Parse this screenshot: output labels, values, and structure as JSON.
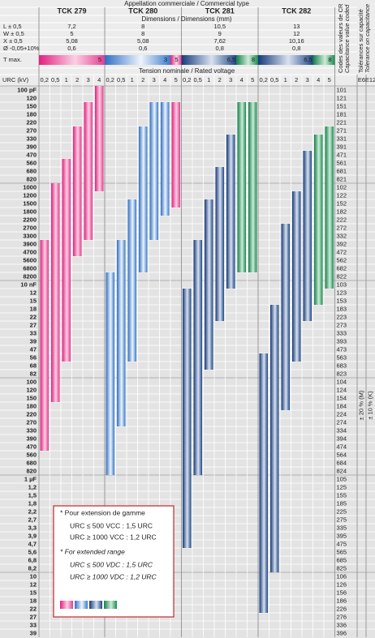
{
  "header": {
    "type_title": "Appellation commerciale / Commercial type",
    "dim_title": "Dimensions / Dimensions (mm)",
    "dim_labels": [
      "L ± 0,5",
      "W ± 0,5",
      "X ± 0,5",
      "Ø -0,05+10%"
    ],
    "tmax_label": "T max.",
    "voltage_title": "Tension nominale / Rated voltage",
    "urc_label": "URC (kV)",
    "code_title": [
      "Codes des valeurs de CR",
      "Capacitance value coded"
    ],
    "tol_title": [
      "Tolérances sur capacité",
      "Tolerance on capacitance"
    ],
    "e6": "E6",
    "e12": "E12"
  },
  "tolerances": [
    "± 20 % (M)",
    "± 10 % (K)"
  ],
  "products": [
    {
      "name": "TCK 279",
      "dims": [
        "7,2",
        "5",
        "5,08",
        "0,6"
      ],
      "voltages": [
        "0,2",
        "0,5",
        "1",
        "2",
        "3",
        "4"
      ],
      "bars": [
        {
          "from": "392",
          "to": "474",
          "color": "pink"
        },
        {
          "from": "102",
          "to": "154",
          "color": "pink"
        },
        {
          "from": "561",
          "to": "563",
          "color": "pink"
        },
        {
          "from": "271",
          "to": "472",
          "color": "pink"
        },
        {
          "from": "151",
          "to": "332",
          "color": "pink"
        },
        {
          "from": "101",
          "to": "102",
          "color": "pink"
        }
      ],
      "tmax": [
        {
          "value": "5",
          "color": "pink"
        }
      ]
    },
    {
      "name": "TCK 280",
      "dims": [
        "8",
        "8",
        "5,08",
        "0,6"
      ],
      "voltages": [
        "0,2",
        "0,5",
        "1",
        "2",
        "3",
        "4",
        "5"
      ],
      "bars": [
        {
          "from": "822",
          "to": "824",
          "color": "blue"
        },
        {
          "from": "392",
          "to": "274",
          "color": "blue"
        },
        {
          "from": "152",
          "to": "563",
          "color": "blue"
        },
        {
          "from": "271",
          "to": "682",
          "color": "blue"
        },
        {
          "from": "151",
          "to": "332",
          "color": "blue"
        },
        {
          "from": "151",
          "to": "182",
          "color": "blue"
        },
        {
          "from": "151",
          "to": "152",
          "color": "pink"
        }
      ],
      "tmax": [
        {
          "value": "3",
          "color": "blue"
        },
        {
          "value": "5",
          "color": "pink"
        }
      ]
    },
    {
      "name": "TCK 281",
      "dims": [
        "10,5",
        "9",
        "7,62",
        "0,8"
      ],
      "voltages": [
        "0,2",
        "0,5",
        "1",
        "2",
        "3",
        "4",
        "5"
      ],
      "bars": [
        {
          "from": "123",
          "to": "475",
          "color": "navy"
        },
        {
          "from": "392",
          "to": "824",
          "color": "navy"
        },
        {
          "from": "152",
          "to": "683",
          "color": "navy"
        },
        {
          "from": "681",
          "to": "223",
          "color": "navy"
        },
        {
          "from": "331",
          "to": "103",
          "color": "navy"
        },
        {
          "from": "151",
          "to": "682",
          "color": "green"
        },
        {
          "from": "151",
          "to": "682",
          "color": "green"
        }
      ],
      "tmax": [
        {
          "value": "6,5",
          "color": "navy"
        },
        {
          "value": "8",
          "color": "green"
        }
      ]
    },
    {
      "name": "TCK 282",
      "dims": [
        "13",
        "12",
        "10,16",
        "0,8"
      ],
      "voltages": [
        "0,2",
        "0,5",
        "1",
        "2",
        "3",
        "4",
        "5"
      ],
      "bars": [
        {
          "from": "563",
          "to": "226",
          "color": "navy"
        },
        {
          "from": "183",
          "to": "825",
          "color": "navy"
        },
        {
          "from": "272",
          "to": "184",
          "color": "navy"
        },
        {
          "from": "122",
          "to": "563",
          "color": "navy"
        },
        {
          "from": "471",
          "to": "223",
          "color": "navy"
        },
        {
          "from": "331",
          "to": "153",
          "color": "green"
        },
        {
          "from": "271",
          "to": "103",
          "color": "green"
        }
      ],
      "tmax": [
        {
          "value": "6,5",
          "color": "navy"
        },
        {
          "value": "8",
          "color": "green"
        }
      ]
    }
  ],
  "rows": [
    {
      "label": "100 pF",
      "code": "101"
    },
    {
      "label": "120",
      "code": "121"
    },
    {
      "label": "150",
      "code": "151"
    },
    {
      "label": "180",
      "code": "181"
    },
    {
      "label": "220",
      "code": "221"
    },
    {
      "label": "270",
      "code": "271"
    },
    {
      "label": "330",
      "code": "331"
    },
    {
      "label": "390",
      "code": "391"
    },
    {
      "label": "470",
      "code": "471"
    },
    {
      "label": "560",
      "code": "561"
    },
    {
      "label": "680",
      "code": "681"
    },
    {
      "label": "820",
      "code": "821"
    },
    {
      "label": "1000",
      "code": "102"
    },
    {
      "label": "1200",
      "code": "122"
    },
    {
      "label": "1500",
      "code": "152"
    },
    {
      "label": "1800",
      "code": "182"
    },
    {
      "label": "2200",
      "code": "222"
    },
    {
      "label": "2700",
      "code": "272"
    },
    {
      "label": "3300",
      "code": "332"
    },
    {
      "label": "3900",
      "code": "392"
    },
    {
      "label": "4700",
      "code": "472"
    },
    {
      "label": "5600",
      "code": "562"
    },
    {
      "label": "6800",
      "code": "682"
    },
    {
      "label": "8200",
      "code": "822"
    },
    {
      "label": "10 nF",
      "code": "103"
    },
    {
      "label": "12",
      "code": "123"
    },
    {
      "label": "15",
      "code": "153"
    },
    {
      "label": "18",
      "code": "183"
    },
    {
      "label": "22",
      "code": "223"
    },
    {
      "label": "27",
      "code": "273"
    },
    {
      "label": "33",
      "code": "333"
    },
    {
      "label": "39",
      "code": "393"
    },
    {
      "label": "47",
      "code": "473"
    },
    {
      "label": "56",
      "code": "563"
    },
    {
      "label": "68",
      "code": "683"
    },
    {
      "label": "82",
      "code": "823"
    },
    {
      "label": "100",
      "code": "104"
    },
    {
      "label": "120",
      "code": "124"
    },
    {
      "label": "150",
      "code": "154"
    },
    {
      "label": "180",
      "code": "184"
    },
    {
      "label": "220",
      "code": "224"
    },
    {
      "label": "270",
      "code": "274"
    },
    {
      "label": "330",
      "code": "334"
    },
    {
      "label": "390",
      "code": "394"
    },
    {
      "label": "470",
      "code": "474"
    },
    {
      "label": "560",
      "code": "564"
    },
    {
      "label": "680",
      "code": "684"
    },
    {
      "label": "820",
      "code": "824"
    },
    {
      "label": "1 µF",
      "code": "105"
    },
    {
      "label": "1,2",
      "code": "125"
    },
    {
      "label": "1,5",
      "code": "155"
    },
    {
      "label": "1,8",
      "code": "185"
    },
    {
      "label": "2,2",
      "code": "225"
    },
    {
      "label": "2,7",
      "code": "275"
    },
    {
      "label": "3,3",
      "code": "335"
    },
    {
      "label": "3,9",
      "code": "395"
    },
    {
      "label": "4,7",
      "code": "475"
    },
    {
      "label": "5,6",
      "code": "565"
    },
    {
      "label": "6,8",
      "code": "685"
    },
    {
      "label": "8,2",
      "code": "825"
    },
    {
      "label": "10",
      "code": "106"
    },
    {
      "label": "12",
      "code": "126"
    },
    {
      "label": "15",
      "code": "156"
    },
    {
      "label": "18",
      "code": "186"
    },
    {
      "label": "22",
      "code": "226"
    },
    {
      "label": "27",
      "code": "276"
    },
    {
      "label": "33",
      "code": "336"
    },
    {
      "label": "39",
      "code": "396"
    }
  ],
  "legend": [
    "* Pour extension de gamme",
    "URC ≤  500 VCC : 1,5 URC",
    "URC ≥ 1000 VCC : 1,2 URC",
    "* For extended range",
    "URC ≤  500 VDC : 1,5 URC",
    "URC ≥ 1000 VDC : 1,2 URC"
  ]
}
